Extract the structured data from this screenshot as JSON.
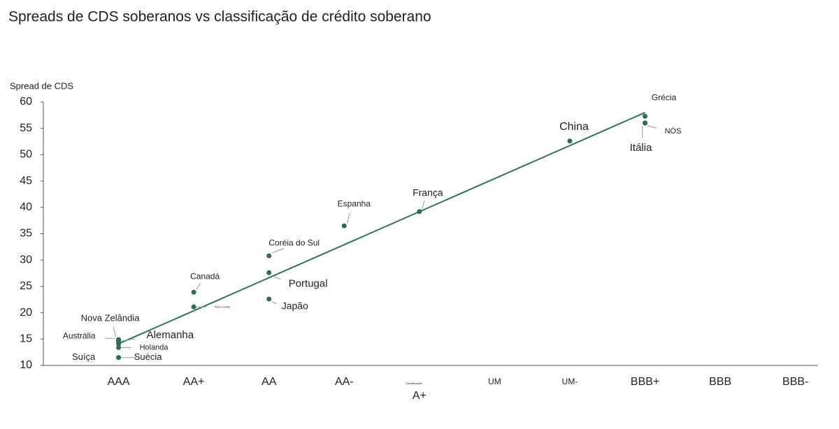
{
  "chart_data": {
    "type": "scatter",
    "title": "Spreads de CDS soberanos vs classificação de crédito soberano",
    "y_label": "Spread de CDS",
    "x_label": "Classificação",
    "categories": [
      "AAA",
      "AA+",
      "AA",
      "AA-",
      "A+",
      "UM",
      "UM-",
      "BBB+",
      "BBB",
      "BBB-"
    ],
    "xlim": [
      -1,
      9.3
    ],
    "ylim": [
      10,
      60
    ],
    "yticks": [
      10,
      15,
      20,
      25,
      30,
      35,
      40,
      45,
      50,
      55,
      60
    ],
    "color": "#2d6b52",
    "x": [
      0,
      0,
      0,
      0,
      0,
      0,
      1,
      1,
      2,
      2,
      2,
      3,
      4,
      6,
      7,
      7,
      7
    ],
    "values": [
      11.5,
      11.5,
      13.4,
      14.1,
      14.6,
      14.9,
      23.9,
      21.1,
      30.8,
      27.6,
      22.6,
      36.5,
      39.2,
      52.6,
      57.3,
      56.0,
      56.0
    ],
    "point_labels": [
      "Suíça",
      "Suécia",
      "Holanda",
      "Alemanha",
      "Austrália",
      "Nova Zelândia",
      "Canadá",
      "Reino Unido",
      "Coréia do Sul",
      "Portugal",
      "Japão",
      "Espanha",
      "França",
      "China",
      "Grécia",
      "NÓS",
      "Itália"
    ],
    "trend": {
      "color": "#2e7553",
      "x": [
        0,
        7
      ],
      "values": [
        14.1,
        58
      ]
    }
  }
}
